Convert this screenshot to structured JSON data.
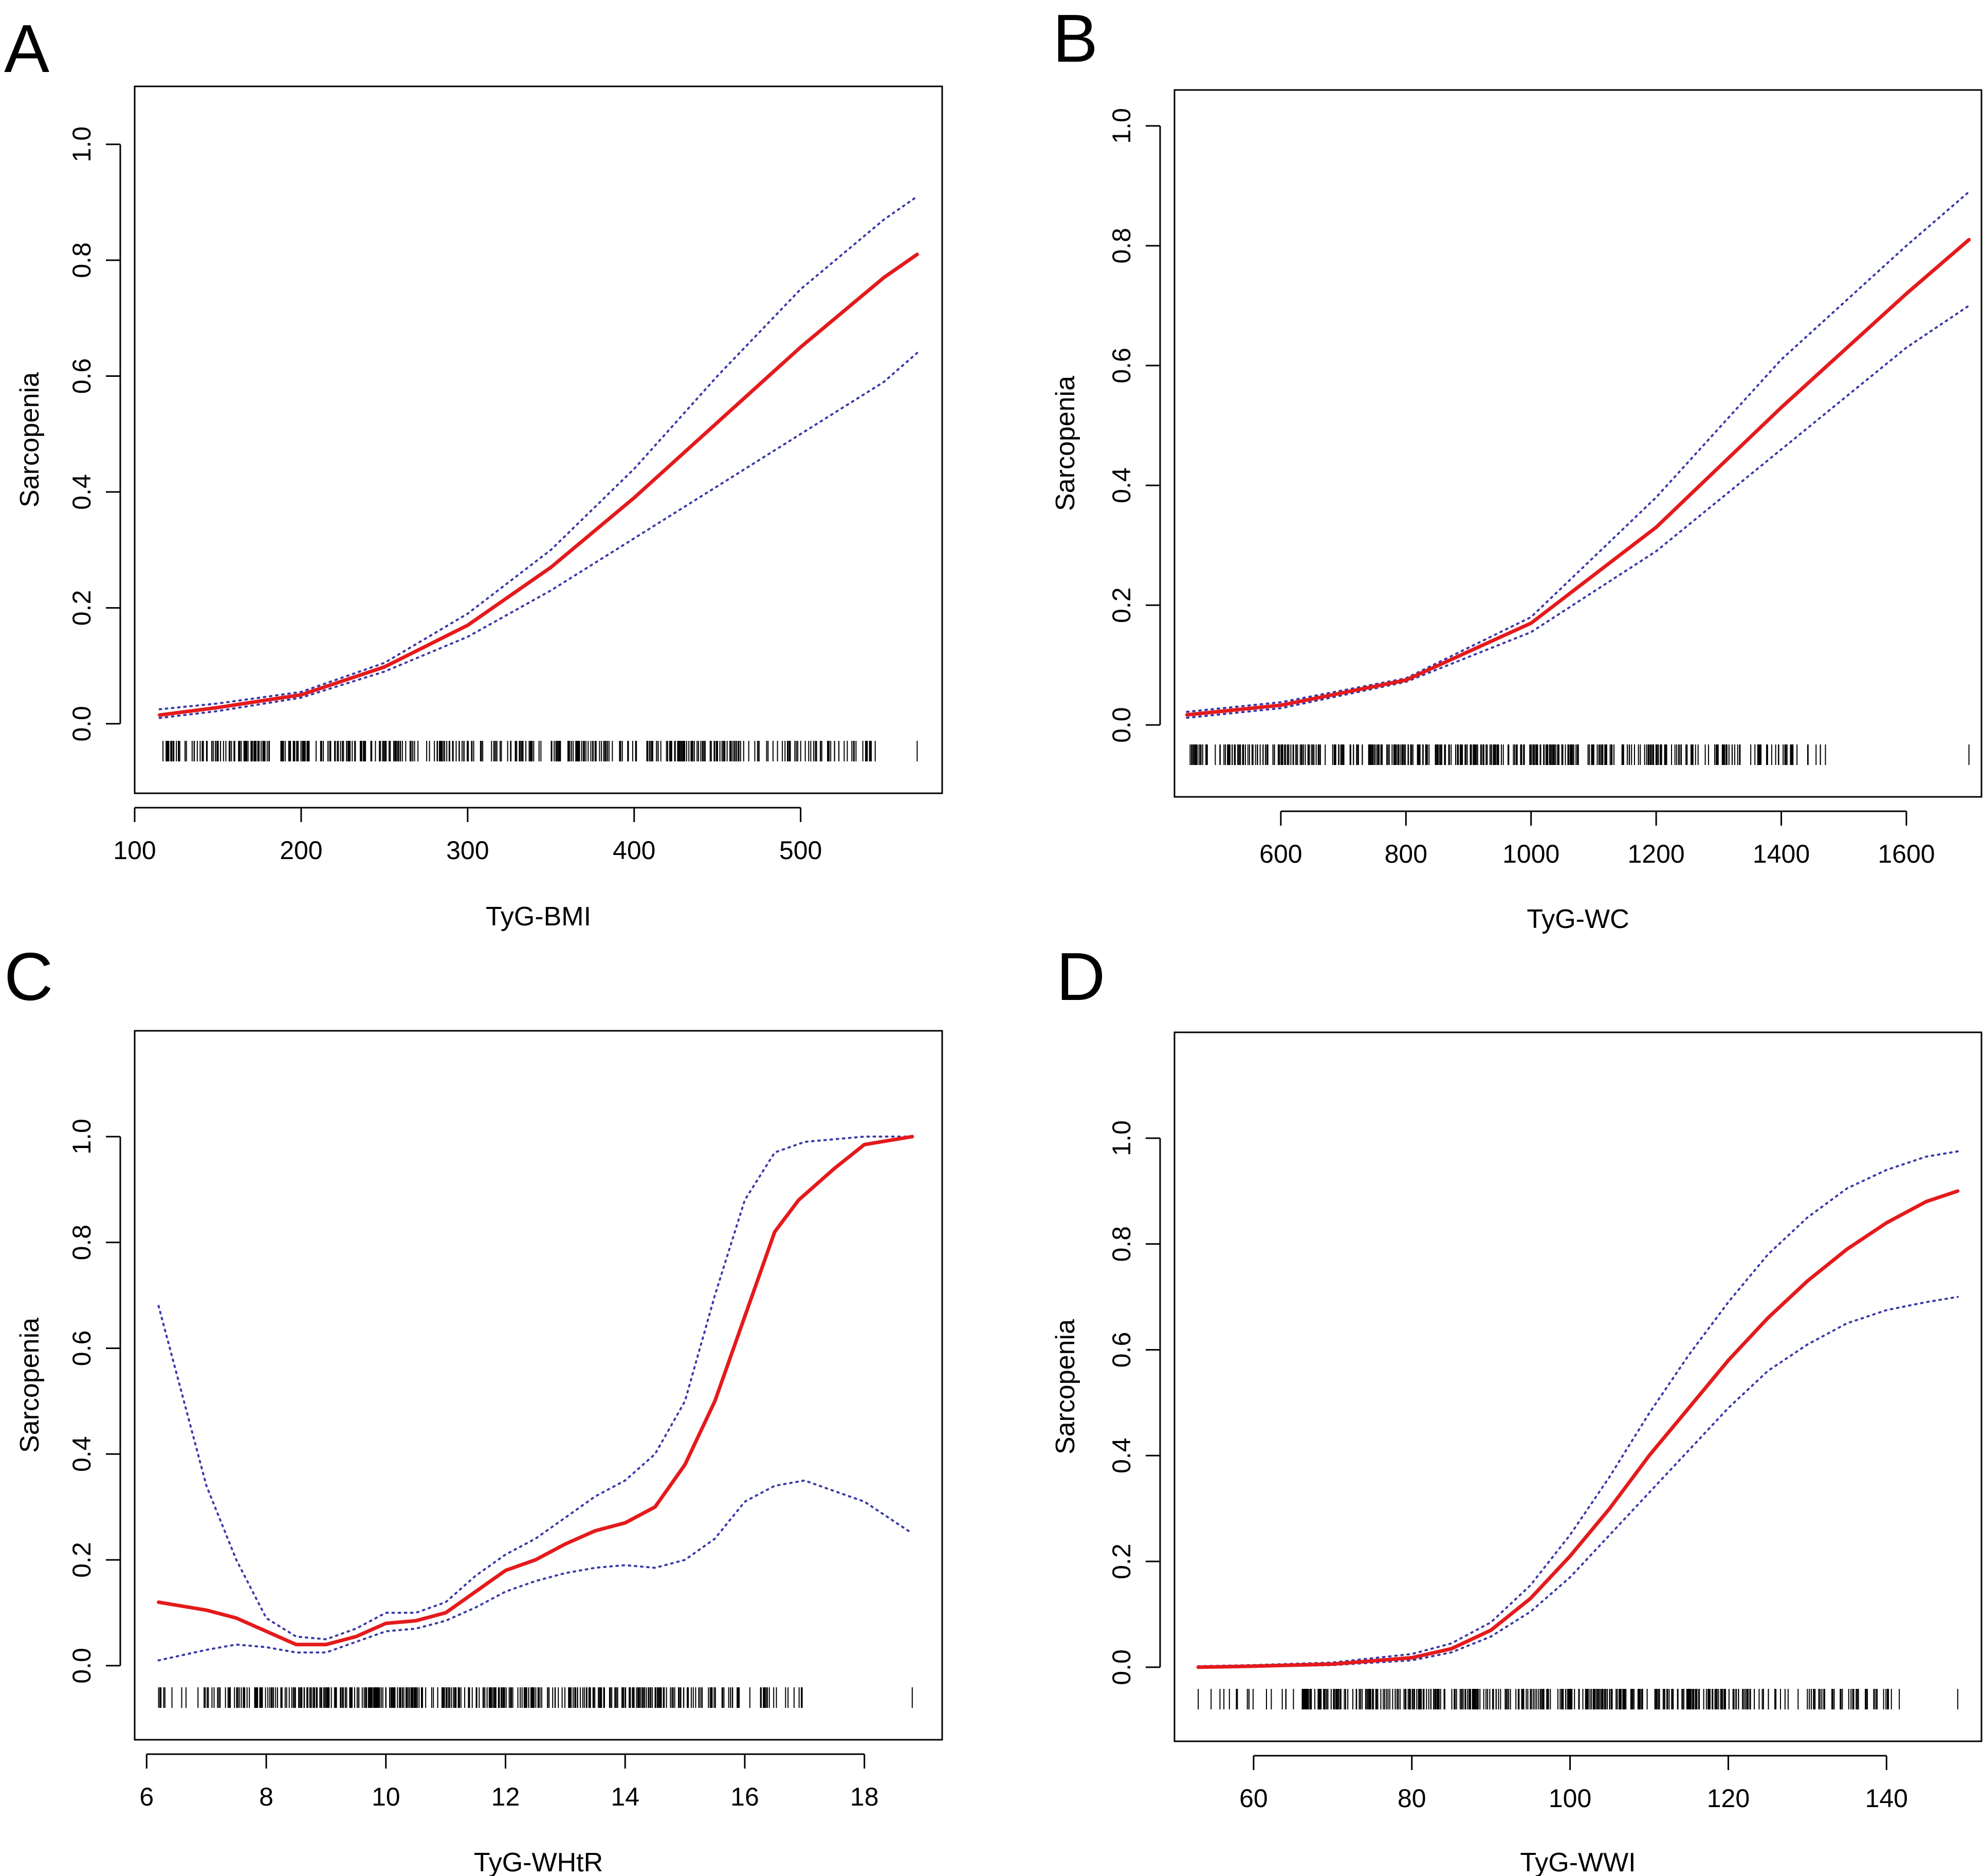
{
  "chart_data": [
    {
      "panel": "A",
      "type": "line",
      "xlabel": "TyG-BMI",
      "ylabel": "Sarcopenia",
      "xlim": [
        100,
        585
      ],
      "ylim": [
        -0.12,
        1.1
      ],
      "xticks": [
        100,
        200,
        300,
        400,
        500
      ],
      "yticks": [
        0.0,
        0.2,
        0.4,
        0.6,
        0.8,
        1.0
      ],
      "series": [
        {
          "name": "estimate",
          "color": "#e41a1c",
          "style": "solid",
          "x": [
            115,
            150,
            200,
            250,
            300,
            350,
            400,
            450,
            500,
            550,
            570
          ],
          "y": [
            0.015,
            0.028,
            0.05,
            0.098,
            0.17,
            0.27,
            0.39,
            0.52,
            0.65,
            0.77,
            0.81
          ]
        },
        {
          "name": "upper CI",
          "color": "#3a3aa8",
          "style": "dotted",
          "x": [
            115,
            150,
            200,
            250,
            300,
            350,
            400,
            450,
            500,
            550,
            570
          ],
          "y": [
            0.025,
            0.035,
            0.055,
            0.105,
            0.19,
            0.3,
            0.44,
            0.6,
            0.75,
            0.87,
            0.91
          ]
        },
        {
          "name": "lower CI",
          "color": "#3a3aa8",
          "style": "dotted",
          "x": [
            115,
            150,
            200,
            250,
            300,
            350,
            400,
            450,
            500,
            550,
            570
          ],
          "y": [
            0.01,
            0.022,
            0.045,
            0.09,
            0.15,
            0.23,
            0.32,
            0.41,
            0.5,
            0.59,
            0.64
          ]
        }
      ],
      "rug": {
        "min": 117,
        "max": 570,
        "dense_min": 135,
        "dense_max": 470,
        "sparse_max": 545,
        "count": 420
      }
    },
    {
      "panel": "B",
      "type": "line",
      "xlabel": "TyG-WC",
      "ylabel": "Sarcopenia",
      "xlim": [
        430,
        1720
      ],
      "ylim": [
        -0.12,
        1.06
      ],
      "xticks": [
        600,
        800,
        1000,
        1200,
        1400,
        1600
      ],
      "yticks": [
        0.0,
        0.2,
        0.4,
        0.6,
        0.8,
        1.0
      ],
      "series": [
        {
          "name": "estimate",
          "color": "#e41a1c",
          "style": "solid",
          "x": [
            450,
            600,
            800,
            1000,
            1200,
            1400,
            1600,
            1700
          ],
          "y": [
            0.017,
            0.033,
            0.075,
            0.17,
            0.33,
            0.53,
            0.72,
            0.81
          ]
        },
        {
          "name": "upper CI",
          "color": "#3a3aa8",
          "style": "dotted",
          "x": [
            450,
            600,
            800,
            1000,
            1200,
            1400,
            1600,
            1700
          ],
          "y": [
            0.022,
            0.038,
            0.078,
            0.18,
            0.38,
            0.61,
            0.8,
            0.89
          ]
        },
        {
          "name": "lower CI",
          "color": "#3a3aa8",
          "style": "dotted",
          "x": [
            450,
            600,
            800,
            1000,
            1200,
            1400,
            1600,
            1700
          ],
          "y": [
            0.012,
            0.028,
            0.072,
            0.155,
            0.29,
            0.46,
            0.63,
            0.7
          ]
        }
      ],
      "rug": {
        "min": 455,
        "max": 1700,
        "dense_min": 470,
        "dense_max": 1240,
        "sparse_max": 1480,
        "count": 420
      }
    },
    {
      "panel": "C",
      "type": "line",
      "xlabel": "TyG-WHtR",
      "ylabel": "Sarcopenia",
      "xlim": [
        5.8,
        19.3
      ],
      "ylim": [
        -0.14,
        1.2
      ],
      "xticks": [
        6,
        8,
        10,
        12,
        14,
        16,
        18
      ],
      "yticks": [
        0.0,
        0.2,
        0.4,
        0.6,
        0.8,
        1.0
      ],
      "series": [
        {
          "name": "estimate",
          "color": "#e41a1c",
          "style": "solid",
          "x": [
            6.2,
            7,
            7.5,
            8,
            8.5,
            9,
            9.5,
            10,
            10.5,
            11,
            11.5,
            12,
            12.5,
            13,
            13.5,
            14,
            14.5,
            15,
            15.5,
            16,
            16.5,
            16.9,
            17.5,
            18,
            18.8
          ],
          "y": [
            0.12,
            0.105,
            0.09,
            0.065,
            0.04,
            0.04,
            0.055,
            0.08,
            0.085,
            0.1,
            0.14,
            0.18,
            0.2,
            0.23,
            0.255,
            0.27,
            0.3,
            0.38,
            0.5,
            0.66,
            0.82,
            0.88,
            0.94,
            0.985,
            1.0
          ]
        },
        {
          "name": "upper CI",
          "color": "#3a3aa8",
          "style": "dotted",
          "x": [
            6.2,
            7,
            7.5,
            8,
            8.5,
            9,
            9.5,
            10,
            10.5,
            11,
            11.5,
            12,
            12.5,
            13,
            13.5,
            14,
            14.5,
            15,
            15.5,
            16,
            16.5,
            17,
            18,
            18.8
          ],
          "y": [
            0.68,
            0.34,
            0.2,
            0.09,
            0.055,
            0.05,
            0.07,
            0.1,
            0.1,
            0.12,
            0.17,
            0.21,
            0.24,
            0.28,
            0.32,
            0.35,
            0.4,
            0.5,
            0.7,
            0.88,
            0.97,
            0.99,
            1.0,
            1.0
          ]
        },
        {
          "name": "lower CI",
          "color": "#3a3aa8",
          "style": "dotted",
          "x": [
            6.2,
            7,
            7.5,
            8,
            8.5,
            9,
            9.5,
            10,
            10.5,
            11,
            11.5,
            12,
            12.5,
            13,
            13.5,
            14,
            14.5,
            15,
            15.5,
            16,
            16.5,
            17,
            17.5,
            18,
            18.8
          ],
          "y": [
            0.01,
            0.03,
            0.04,
            0.035,
            0.025,
            0.025,
            0.045,
            0.065,
            0.07,
            0.085,
            0.11,
            0.14,
            0.16,
            0.175,
            0.185,
            0.19,
            0.185,
            0.2,
            0.24,
            0.31,
            0.34,
            0.35,
            0.33,
            0.31,
            0.25
          ]
        }
      ],
      "rug": {
        "min": 6.2,
        "max": 18.8,
        "dense_min": 7.2,
        "dense_max": 14.9,
        "sparse_max": 17.0,
        "count": 420
      }
    },
    {
      "panel": "D",
      "type": "line",
      "xlabel": "TyG-WWI",
      "ylabel": "Sarcopenia",
      "xlim": [
        50,
        152
      ],
      "ylim": [
        -0.14,
        1.2
      ],
      "xticks": [
        60,
        80,
        100,
        120,
        140
      ],
      "yticks": [
        0.0,
        0.2,
        0.4,
        0.6,
        0.8,
        1.0
      ],
      "series": [
        {
          "name": "estimate",
          "color": "#e41a1c",
          "style": "solid",
          "x": [
            53,
            60,
            70,
            80,
            85,
            90,
            95,
            100,
            105,
            110,
            115,
            120,
            125,
            130,
            135,
            140,
            145,
            149
          ],
          "y": [
            0.0,
            0.002,
            0.006,
            0.018,
            0.035,
            0.07,
            0.13,
            0.21,
            0.3,
            0.4,
            0.49,
            0.58,
            0.66,
            0.73,
            0.79,
            0.84,
            0.88,
            0.9
          ]
        },
        {
          "name": "upper CI",
          "color": "#3a3aa8",
          "style": "dotted",
          "x": [
            53,
            60,
            70,
            80,
            85,
            90,
            95,
            100,
            105,
            110,
            115,
            120,
            125,
            130,
            135,
            140,
            145,
            149
          ],
          "y": [
            0.002,
            0.004,
            0.009,
            0.025,
            0.045,
            0.085,
            0.155,
            0.25,
            0.36,
            0.48,
            0.59,
            0.69,
            0.78,
            0.85,
            0.905,
            0.94,
            0.965,
            0.975
          ]
        },
        {
          "name": "lower CI",
          "color": "#3a3aa8",
          "style": "dotted",
          "x": [
            53,
            60,
            70,
            80,
            85,
            90,
            95,
            100,
            105,
            110,
            115,
            120,
            125,
            130,
            135,
            140,
            145,
            149
          ],
          "y": [
            0.0,
            0.001,
            0.004,
            0.013,
            0.028,
            0.058,
            0.105,
            0.17,
            0.25,
            0.33,
            0.41,
            0.49,
            0.56,
            0.61,
            0.65,
            0.675,
            0.69,
            0.7
          ]
        }
      ],
      "rug": {
        "min": 53,
        "max": 149,
        "dense_min": 66,
        "dense_max": 122,
        "sparse_max": 142,
        "count": 420
      }
    }
  ]
}
